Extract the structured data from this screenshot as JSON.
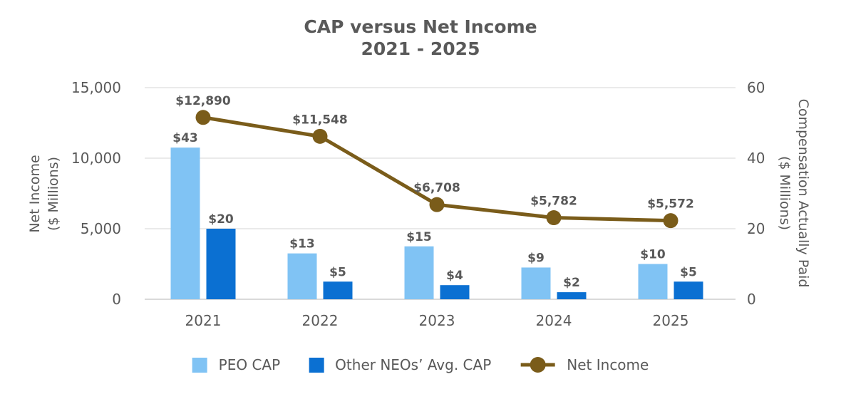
{
  "chart_data": {
    "type": "bar",
    "subtype": "combo-bar-line",
    "title": "CAP versus Net Income",
    "subtitle": "2021 - 2025",
    "categories": [
      "2021",
      "2022",
      "2023",
      "2024",
      "2025"
    ],
    "series": [
      {
        "name": "PEO CAP",
        "type": "bar",
        "axis": "right",
        "color": "#80C3F4",
        "values": [
          43,
          13,
          15,
          9,
          10
        ],
        "labels": [
          "$43",
          "$13",
          "$15",
          "$9",
          "$10"
        ]
      },
      {
        "name": "Other NEOs’ Avg. CAP",
        "type": "bar",
        "axis": "right",
        "color": "#0B70D2",
        "values": [
          20,
          5,
          4,
          2,
          5
        ],
        "labels": [
          "$20",
          "$5",
          "$4",
          "$2",
          "$5"
        ]
      },
      {
        "name": "Net Income",
        "type": "line",
        "axis": "left",
        "color": "#7A5C1A",
        "values": [
          12890,
          11548,
          6708,
          5782,
          5572
        ],
        "labels": [
          "$12,890",
          "$11,548",
          "$6,708",
          "$5,782",
          "$5,572"
        ]
      }
    ],
    "left_axis": {
      "label": "Net Income ($ Millions)",
      "range": [
        0,
        15000
      ],
      "tick_values": [
        0,
        5000,
        10000,
        15000
      ],
      "tick_labels": [
        "0",
        "5,000",
        "10,000",
        "15,000"
      ]
    },
    "right_axis": {
      "label": "Compensation Actually Paid ($ Millions)",
      "range": [
        0,
        60
      ],
      "tick_values": [
        0,
        20,
        40,
        60
      ],
      "tick_labels": [
        "0",
        "20",
        "40",
        "60"
      ]
    },
    "grid": true,
    "legend_position": "bottom"
  },
  "axes_display": {
    "left_lines": [
      "Net Income",
      "($ Millions)"
    ],
    "right_lines": [
      "Compensation Actually Paid",
      "($ Millions)"
    ]
  },
  "colors": {
    "text": "#595959",
    "gridline": "#E4E4E4",
    "baseline": "#D9D9D9",
    "peo_cap": "#80C3F4",
    "other_neo_cap": "#0B70D2",
    "net_income": "#7A5C1A",
    "background": "#FFFFFF"
  }
}
